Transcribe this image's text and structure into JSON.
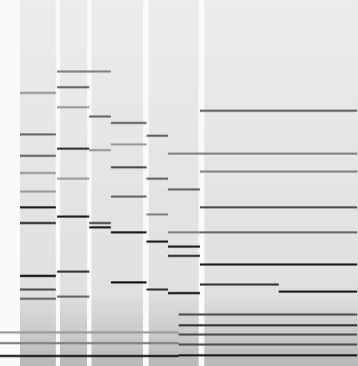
{
  "chart_data": {
    "type": "spectrogram",
    "tick_labels": false,
    "xlim": [
      0,
      501
    ],
    "ylim": [
      0,
      512
    ],
    "bands": [
      [
        0,
        28
      ],
      [
        78,
        84
      ],
      [
        122,
        128
      ],
      [
        200,
        208
      ],
      [
        278,
        286
      ]
    ],
    "segments": [
      {
        "x": [
          28,
          78
        ],
        "y": 222,
        "level": 0.9
      },
      {
        "x": [
          28,
          78
        ],
        "y": 200,
        "level": 0.8
      },
      {
        "x": [
          28,
          78
        ],
        "y": 126,
        "level": 0.95
      },
      {
        "x": [
          28,
          78
        ],
        "y": 107,
        "level": 0.7
      },
      {
        "x": [
          28,
          78
        ],
        "y": 94,
        "level": 0.6
      },
      {
        "x": [
          28,
          78
        ],
        "y": 324,
        "level": 0.6
      },
      {
        "x": [
          28,
          78
        ],
        "y": 294,
        "level": 0.6
      },
      {
        "x": [
          28,
          78
        ],
        "y": 270,
        "level": 0.4
      },
      {
        "x": [
          28,
          78
        ],
        "y": 382,
        "level": 0.4
      },
      {
        "x": [
          28,
          78
        ],
        "y": 244,
        "level": 0.4
      },
      {
        "x": [
          80,
          125
        ],
        "y": 209,
        "level": 0.9
      },
      {
        "x": [
          80,
          125
        ],
        "y": 132,
        "level": 0.8
      },
      {
        "x": [
          80,
          125
        ],
        "y": 304,
        "level": 0.8
      },
      {
        "x": [
          80,
          125
        ],
        "y": 390,
        "level": 0.6
      },
      {
        "x": [
          80,
          125
        ],
        "y": 412,
        "level": 0.5
      },
      {
        "x": [
          80,
          125
        ],
        "y": 362,
        "level": 0.4
      },
      {
        "x": [
          80,
          125
        ],
        "y": 97,
        "level": 0.6
      },
      {
        "x": [
          80,
          125
        ],
        "y": 262,
        "level": 0.4
      },
      {
        "x": [
          125,
          155
        ],
        "y": 194,
        "level": 0.9
      },
      {
        "x": [
          125,
          155
        ],
        "y": 200,
        "level": 0.7
      },
      {
        "x": [
          125,
          155
        ],
        "y": 349,
        "level": 0.6
      },
      {
        "x": [
          125,
          155
        ],
        "y": 412,
        "level": 0.5
      },
      {
        "x": [
          125,
          155
        ],
        "y": 302,
        "level": 0.4
      },
      {
        "x": [
          155,
          205
        ],
        "y": 187,
        "level": 0.9
      },
      {
        "x": [
          155,
          205
        ],
        "y": 117,
        "level": 0.95
      },
      {
        "x": [
          155,
          205
        ],
        "y": 278,
        "level": 0.7
      },
      {
        "x": [
          155,
          205
        ],
        "y": 340,
        "level": 0.6
      },
      {
        "x": [
          155,
          205
        ],
        "y": 237,
        "level": 0.6
      },
      {
        "x": [
          155,
          205
        ],
        "y": 310,
        "level": 0.4
      },
      {
        "x": [
          205,
          235
        ],
        "y": 174,
        "level": 0.9
      },
      {
        "x": [
          205,
          235
        ],
        "y": 107,
        "level": 0.8
      },
      {
        "x": [
          205,
          235
        ],
        "y": 262,
        "level": 0.6
      },
      {
        "x": [
          205,
          235
        ],
        "y": 322,
        "level": 0.6
      },
      {
        "x": [
          205,
          235
        ],
        "y": 212,
        "level": 0.5
      },
      {
        "x": [
          235,
          280
        ],
        "y": 167,
        "level": 0.9
      },
      {
        "x": [
          235,
          280
        ],
        "y": 154,
        "level": 0.8
      },
      {
        "x": [
          235,
          280
        ],
        "y": 102,
        "level": 0.9
      },
      {
        "x": [
          235,
          280
        ],
        "y": 247,
        "level": 0.6
      },
      {
        "x": [
          235,
          280
        ],
        "y": 297,
        "level": 0.5
      },
      {
        "x": [
          235,
          280
        ],
        "y": 187,
        "level": 0.5
      },
      {
        "x": [
          280,
          500
        ],
        "y": 142,
        "level": 0.9
      },
      {
        "x": [
          280,
          500
        ],
        "y": 222,
        "level": 0.7
      },
      {
        "x": [
          280,
          500
        ],
        "y": 187,
        "level": 0.6
      },
      {
        "x": [
          280,
          500
        ],
        "y": 357,
        "level": 0.6
      },
      {
        "x": [
          280,
          500
        ],
        "y": 272,
        "level": 0.5
      },
      {
        "x": [
          280,
          500
        ],
        "y": 297,
        "level": 0.5
      },
      {
        "x": [
          280,
          390
        ],
        "y": 114,
        "level": 0.8
      },
      {
        "x": [
          390,
          500
        ],
        "y": 104,
        "level": 0.9
      },
      {
        "x": [
          250,
          500
        ],
        "y": 72,
        "level": 0.7
      },
      {
        "x": [
          250,
          500
        ],
        "y": 57,
        "level": 0.8
      },
      {
        "x": [
          250,
          500
        ],
        "y": 44,
        "level": 0.7
      },
      {
        "x": [
          250,
          500
        ],
        "y": 30,
        "level": 0.7
      },
      {
        "x": [
          250,
          500
        ],
        "y": 15,
        "level": 0.9
      },
      {
        "x": [
          0,
          250
        ],
        "y": 14,
        "level": 0.9
      },
      {
        "x": [
          0,
          250
        ],
        "y": 32,
        "level": 0.5
      },
      {
        "x": [
          0,
          250
        ],
        "y": 47,
        "level": 0.4
      }
    ]
  }
}
